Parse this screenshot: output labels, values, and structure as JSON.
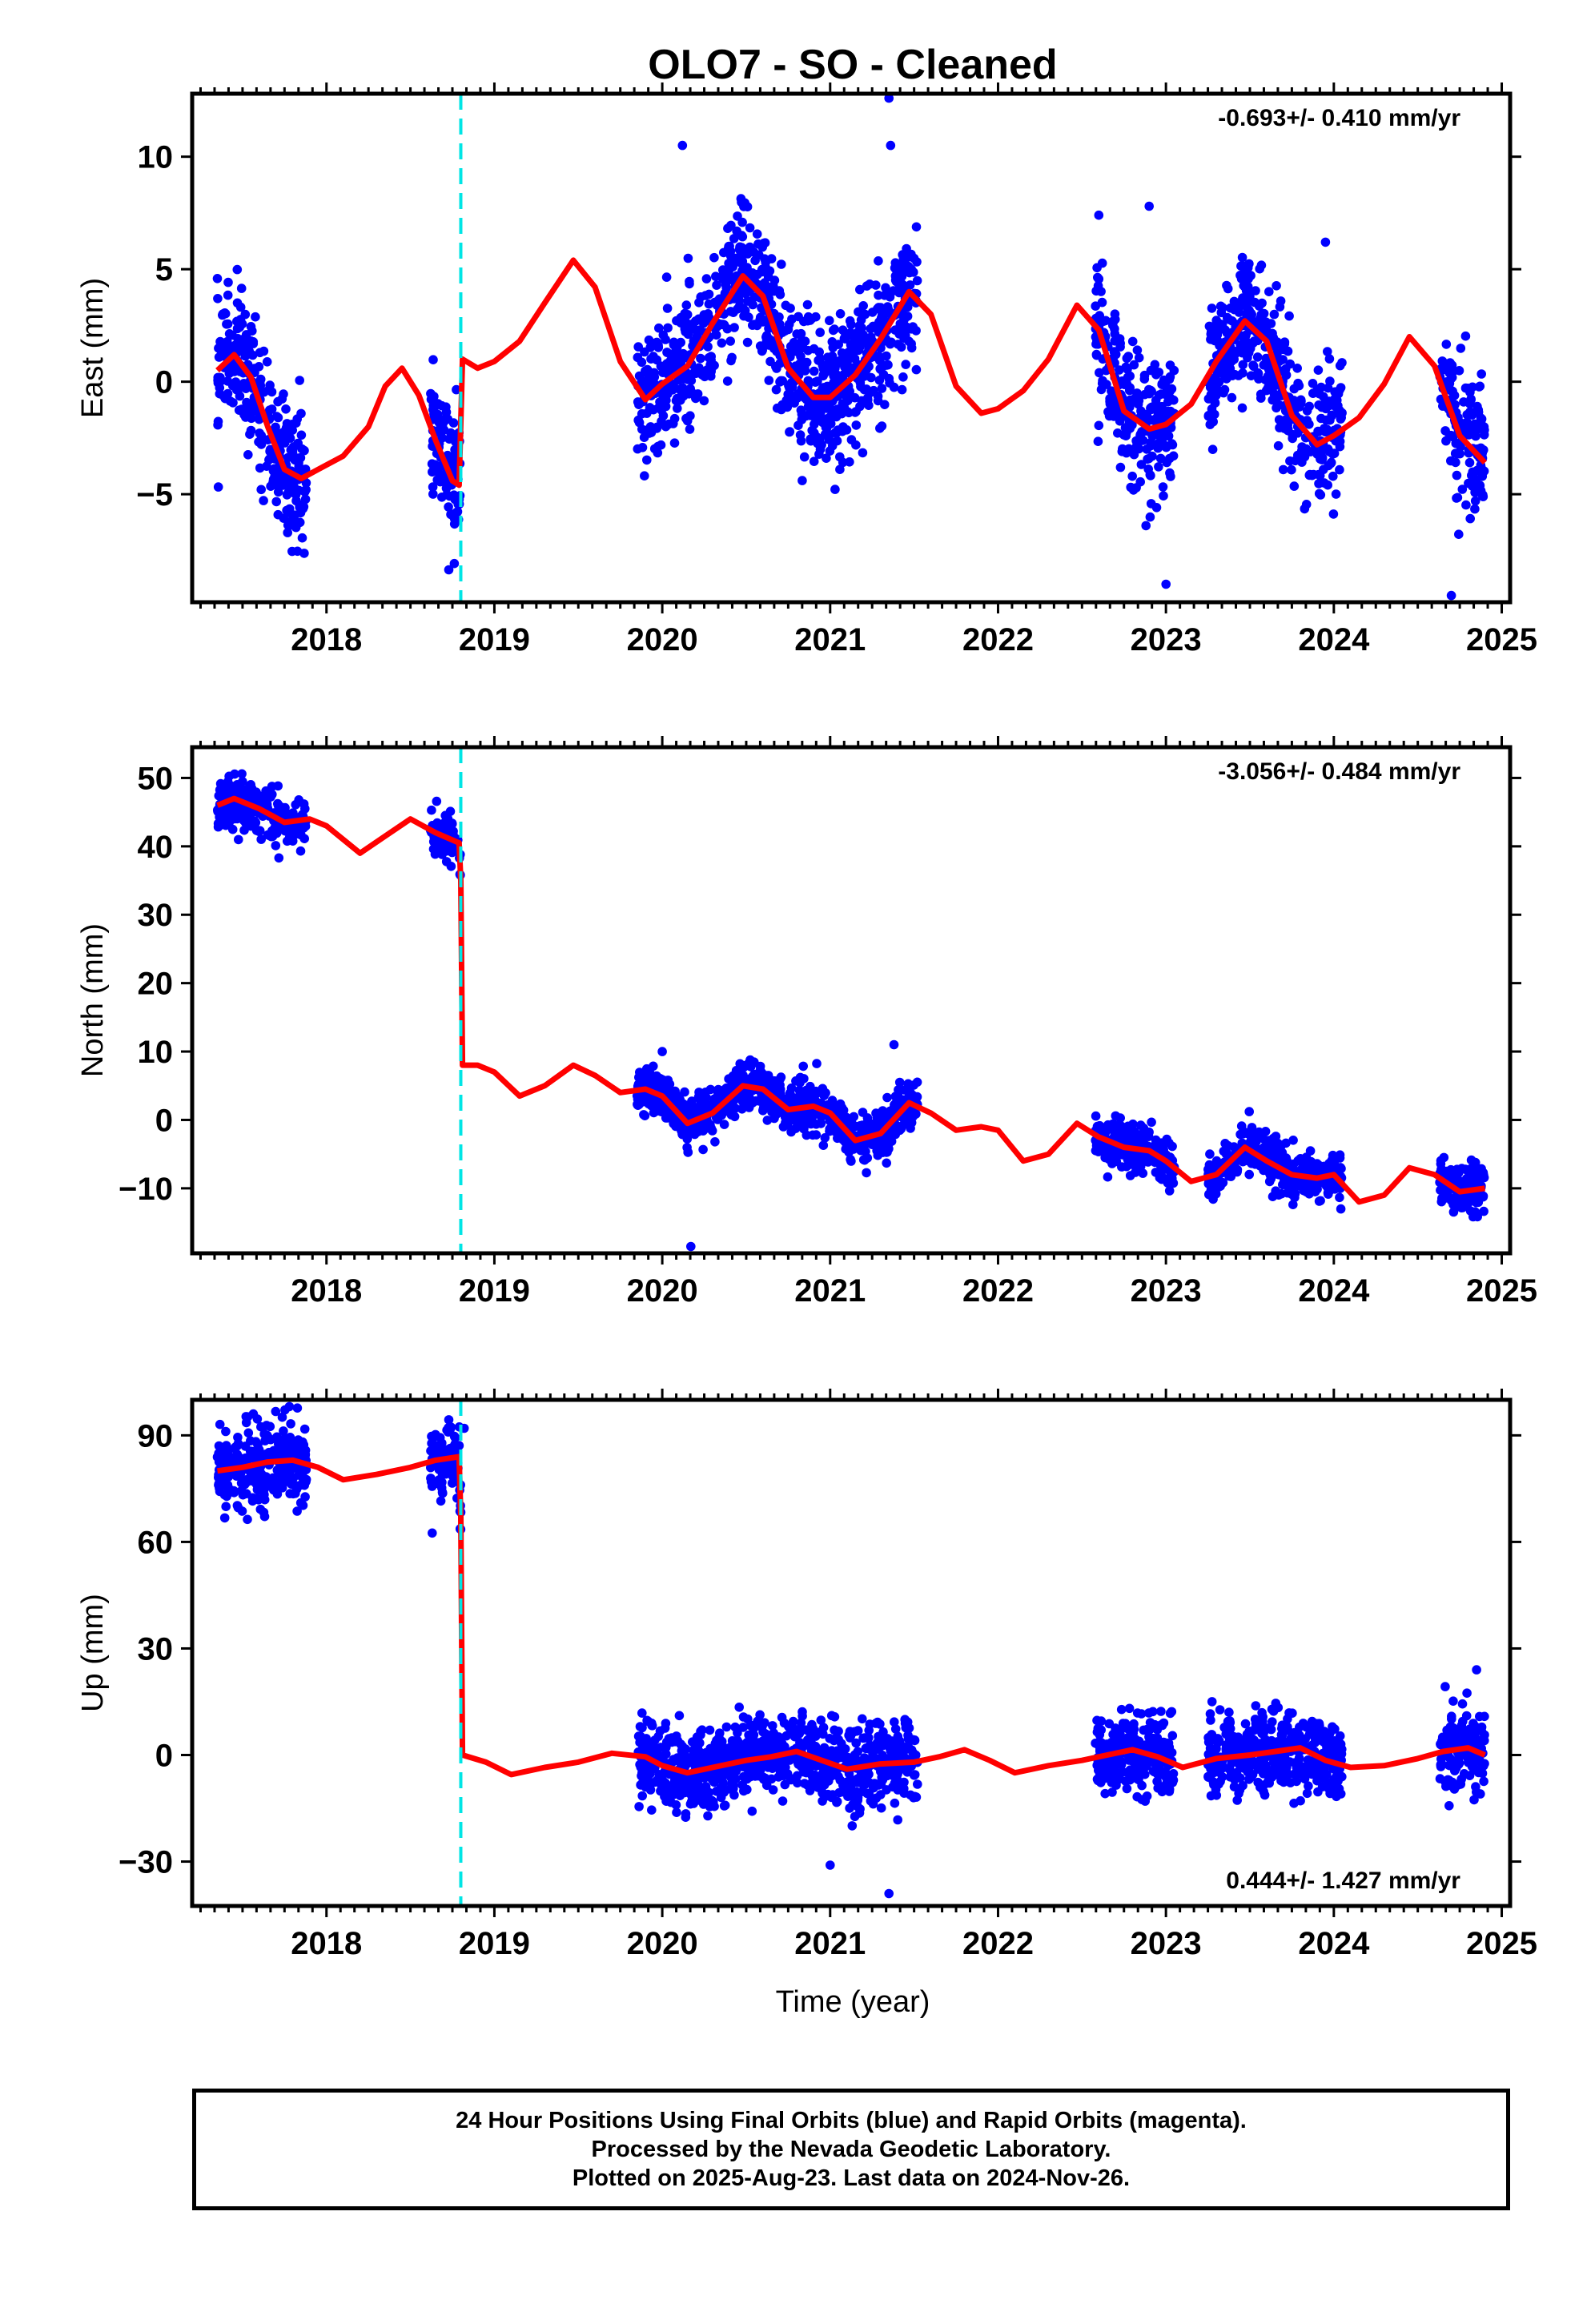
{
  "title": "OLO7  - SO - Cleaned",
  "xlabel": "Time (year)",
  "footer": [
    "24 Hour Positions Using Final Orbits (blue) and Rapid Orbits (magenta).",
    "Processed by the Nevada Geodetic Laboratory.",
    "Plotted on 2025-Aug-23. Last data on 2024-Nov-26."
  ],
  "colors": {
    "points": "#0000ff",
    "model": "#ff0000",
    "offset_line": "#00e5e5",
    "axes": "#000000"
  },
  "chart_data": [
    {
      "type": "scatter",
      "ylabel": "East (mm)",
      "rate_label": "-0.693+/- 0.410 mm/yr",
      "rate_position": "top-right",
      "xlim": [
        2017.2,
        2025.05
      ],
      "xticks": [
        "2018",
        "2019",
        "2020",
        "2021",
        "2022",
        "2023",
        "2024",
        "2025"
      ],
      "ylim": [
        -9.8,
        12.8
      ],
      "yticks": [
        "−5",
        "0",
        "5",
        "10"
      ],
      "offset_epoch": 2018.8,
      "data_segments": [
        [
          2017.35,
          2017.88
        ],
        [
          2018.62,
          2018.8
        ],
        [
          2019.85,
          2021.52
        ],
        [
          2022.58,
          2023.05
        ],
        [
          2023.25,
          2024.05
        ],
        [
          2024.63,
          2024.9
        ]
      ],
      "model": {
        "x": [
          2017.35,
          2017.45,
          2017.55,
          2017.65,
          2017.75,
          2017.85,
          2017.95,
          2018.1,
          2018.25,
          2018.35,
          2018.45,
          2018.55,
          2018.65,
          2018.75,
          2018.79,
          2018.81,
          2018.9,
          2019.0,
          2019.15,
          2019.3,
          2019.47,
          2019.6,
          2019.75,
          2019.9,
          2020.0,
          2020.15,
          2020.3,
          2020.48,
          2020.6,
          2020.75,
          2020.9,
          2021.0,
          2021.15,
          2021.3,
          2021.47,
          2021.6,
          2021.75,
          2021.9,
          2022.0,
          2022.15,
          2022.3,
          2022.47,
          2022.6,
          2022.75,
          2022.9,
          2023.0,
          2023.15,
          2023.3,
          2023.47,
          2023.6,
          2023.75,
          2023.9,
          2024.0,
          2024.15,
          2024.3,
          2024.45,
          2024.6,
          2024.75,
          2024.9
        ],
        "y": [
          0.5,
          1.2,
          0.2,
          -2.0,
          -3.9,
          -4.3,
          -3.9,
          -3.3,
          -2.0,
          -0.2,
          0.6,
          -0.6,
          -2.6,
          -4.4,
          -4.6,
          1.0,
          0.6,
          0.9,
          1.8,
          3.5,
          5.4,
          4.2,
          0.9,
          -0.8,
          -0.1,
          0.7,
          2.6,
          4.7,
          3.8,
          0.6,
          -0.7,
          -0.7,
          0.3,
          1.9,
          4.0,
          3.0,
          -0.2,
          -1.4,
          -1.2,
          -0.4,
          1.0,
          3.4,
          2.3,
          -1.3,
          -2.1,
          -1.9,
          -1.0,
          0.9,
          2.7,
          1.8,
          -1.5,
          -2.8,
          -2.4,
          -1.6,
          -0.1,
          2.0,
          0.7,
          -2.4,
          -3.6
        ]
      },
      "noise_sd": 1.5,
      "outliers": [
        [
          2020.12,
          10.5
        ],
        [
          2021.35,
          12.6
        ],
        [
          2021.36,
          10.5
        ],
        [
          2022.9,
          7.8
        ],
        [
          2022.6,
          7.4
        ],
        [
          2023.0,
          -9.0
        ],
        [
          2024.7,
          -9.5
        ],
        [
          2023.95,
          6.2
        ]
      ],
      "n_points": 2150
    },
    {
      "type": "scatter",
      "ylabel": "North (mm)",
      "rate_label": "-3.056+/- 0.484 mm/yr",
      "rate_position": "top-right",
      "xlim": [
        2017.2,
        2025.05
      ],
      "xticks": [
        "2018",
        "2019",
        "2020",
        "2021",
        "2022",
        "2023",
        "2024",
        "2025"
      ],
      "ylim": [
        -19.5,
        54.5
      ],
      "yticks": [
        "−10",
        "0",
        "10",
        "20",
        "30",
        "40",
        "50"
      ],
      "offset_epoch": 2018.8,
      "data_segments": [
        [
          2017.35,
          2017.88
        ],
        [
          2018.62,
          2018.8
        ],
        [
          2019.85,
          2021.52
        ],
        [
          2022.58,
          2023.05
        ],
        [
          2023.25,
          2024.05
        ],
        [
          2024.63,
          2024.9
        ]
      ],
      "model": {
        "x": [
          2017.35,
          2017.45,
          2017.6,
          2017.75,
          2017.9,
          2018.0,
          2018.2,
          2018.35,
          2018.5,
          2018.65,
          2018.79,
          2018.8,
          2018.81,
          2018.9,
          2019.0,
          2019.15,
          2019.3,
          2019.47,
          2019.6,
          2019.75,
          2019.9,
          2020.0,
          2020.15,
          2020.3,
          2020.48,
          2020.6,
          2020.75,
          2020.9,
          2021.0,
          2021.15,
          2021.3,
          2021.47,
          2021.6,
          2021.75,
          2021.9,
          2022.0,
          2022.15,
          2022.3,
          2022.47,
          2022.6,
          2022.75,
          2022.9,
          2023.0,
          2023.15,
          2023.3,
          2023.47,
          2023.6,
          2023.75,
          2023.9,
          2024.0,
          2024.15,
          2024.3,
          2024.45,
          2024.6,
          2024.75,
          2024.9
        ],
        "y": [
          46,
          47,
          45.5,
          43.5,
          44,
          43,
          39,
          41.5,
          44,
          42,
          40.5,
          35,
          8,
          8,
          7,
          3.5,
          5,
          8,
          6.5,
          4,
          4.5,
          3.5,
          -0.5,
          1,
          5,
          4.5,
          1.5,
          2,
          1,
          -3,
          -2,
          2.5,
          1,
          -1.5,
          -1,
          -1.5,
          -6,
          -5,
          -0.5,
          -2.5,
          -4,
          -4.5,
          -6,
          -9,
          -8,
          -4,
          -6,
          -8,
          -8.5,
          -8,
          -12,
          -11,
          -7,
          -8,
          -10.5,
          -10
        ]
      },
      "noise_sd": 1.7,
      "outliers": [
        [
          2020.17,
          -18.5
        ],
        [
          2021.38,
          11
        ],
        [
          2020.0,
          10
        ]
      ],
      "n_points": 2150
    },
    {
      "type": "scatter",
      "ylabel": "Up (mm)",
      "rate_label": "0.444+/- 1.427 mm/yr",
      "rate_position": "bottom-right",
      "xlim": [
        2017.2,
        2025.05
      ],
      "xticks": [
        "2018",
        "2019",
        "2020",
        "2021",
        "2022",
        "2023",
        "2024",
        "2025"
      ],
      "ylim": [
        -42.5,
        100
      ],
      "yticks": [
        "−30",
        "0",
        "30",
        "60",
        "90"
      ],
      "offset_epoch": 2018.8,
      "data_segments": [
        [
          2017.35,
          2017.88
        ],
        [
          2018.62,
          2018.8
        ],
        [
          2019.85,
          2021.52
        ],
        [
          2022.58,
          2023.05
        ],
        [
          2023.25,
          2024.05
        ],
        [
          2024.63,
          2024.9
        ]
      ],
      "model": {
        "x": [
          2017.35,
          2017.5,
          2017.65,
          2017.8,
          2017.95,
          2018.1,
          2018.3,
          2018.5,
          2018.65,
          2018.79,
          2018.8,
          2018.81,
          2018.95,
          2019.1,
          2019.3,
          2019.5,
          2019.7,
          2019.9,
          2020.0,
          2020.15,
          2020.3,
          2020.5,
          2020.65,
          2020.8,
          2020.95,
          2021.1,
          2021.3,
          2021.5,
          2021.65,
          2021.8,
          2021.95,
          2022.1,
          2022.3,
          2022.5,
          2022.65,
          2022.8,
          2022.95,
          2023.1,
          2023.3,
          2023.5,
          2023.65,
          2023.8,
          2023.95,
          2024.1,
          2024.3,
          2024.5,
          2024.65,
          2024.8,
          2024.9
        ],
        "y": [
          80,
          81,
          82.5,
          83,
          81,
          77.5,
          79,
          81,
          83,
          84,
          67,
          0,
          -2,
          -5.5,
          -3.5,
          -2,
          0.5,
          -0.5,
          -3,
          -5,
          -3.5,
          -1.5,
          -0.5,
          1,
          -1.5,
          -4,
          -2.5,
          -2,
          -0.5,
          1.5,
          -1.5,
          -5,
          -3,
          -1.5,
          0,
          1.5,
          -0.5,
          -3.5,
          -1,
          0,
          1,
          2,
          -1.5,
          -3.5,
          -3,
          -1,
          1,
          2,
          0
        ]
      },
      "noise_sd": 5.5,
      "outliers": [
        [
          2018.63,
          62.5
        ],
        [
          2018.82,
          92
        ],
        [
          2021.0,
          -31
        ],
        [
          2021.35,
          -39
        ],
        [
          2024.85,
          24
        ]
      ],
      "n_points": 2150
    }
  ]
}
